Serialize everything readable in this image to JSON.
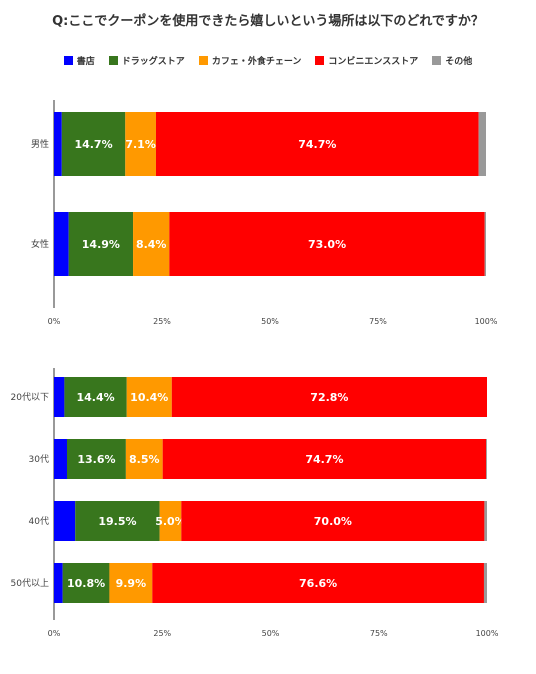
{
  "title": "Q:ここでクーポンを使用できたら嬉しいという場所は以下のどれですか？",
  "legend": [
    {
      "name": "書店",
      "color": "#0000ff"
    },
    {
      "name": "ドラッグストア",
      "color": "#38761d"
    },
    {
      "name": "カフェ・外食チェーン",
      "color": "#ff9900"
    },
    {
      "name": "コンビニエンスストア",
      "color": "#ff0000"
    },
    {
      "name": "その他",
      "color": "#999999"
    }
  ],
  "chart_data": [
    {
      "type": "bar",
      "orientation": "horizontal",
      "stacked": true,
      "categories": [
        "男性",
        "女性"
      ],
      "xlim": [
        0,
        100
      ],
      "x_ticks": [
        "0%",
        "25%",
        "50%",
        "75%",
        "100%"
      ],
      "series": [
        {
          "name": "書店",
          "values": [
            1.8,
            3.4
          ],
          "labels": [
            "",
            ""
          ]
        },
        {
          "name": "ドラッグストア",
          "values": [
            14.7,
            14.9
          ],
          "labels": [
            "14.7%",
            "14.9%"
          ]
        },
        {
          "name": "カフェ・外食チェーン",
          "values": [
            7.1,
            8.4
          ],
          "labels": [
            "7.1%",
            "8.4%"
          ]
        },
        {
          "name": "コンビニエンスストア",
          "values": [
            74.7,
            73.0
          ],
          "labels": [
            "74.7%",
            "73.0%"
          ]
        },
        {
          "name": "その他",
          "values": [
            1.7,
            0.3
          ],
          "labels": [
            "",
            ""
          ]
        }
      ]
    },
    {
      "type": "bar",
      "orientation": "horizontal",
      "stacked": true,
      "categories": [
        "20代以下",
        "30代",
        "40代",
        "50代以上"
      ],
      "xlim": [
        0,
        100
      ],
      "x_ticks": [
        "0%",
        "25%",
        "50%",
        "75%",
        "100%"
      ],
      "series": [
        {
          "name": "書店",
          "values": [
            2.4,
            3.0,
            4.9,
            2.0
          ],
          "labels": [
            "",
            "",
            "",
            ""
          ]
        },
        {
          "name": "ドラッグストア",
          "values": [
            14.4,
            13.6,
            19.5,
            10.8
          ],
          "labels": [
            "14.4%",
            "13.6%",
            "19.5%",
            "10.8%"
          ]
        },
        {
          "name": "カフェ・外食チェーン",
          "values": [
            10.4,
            8.5,
            5.0,
            9.9
          ],
          "labels": [
            "10.4%",
            "8.5%",
            "5.0%",
            "9.9%"
          ]
        },
        {
          "name": "コンビニエンスストア",
          "values": [
            72.8,
            74.7,
            70.0,
            76.6
          ],
          "labels": [
            "72.8%",
            "74.7%",
            "70.0%",
            "76.6%"
          ]
        },
        {
          "name": "その他",
          "values": [
            0.0,
            0.2,
            0.6,
            0.7
          ],
          "labels": [
            "",
            "",
            "",
            ""
          ]
        }
      ]
    }
  ]
}
